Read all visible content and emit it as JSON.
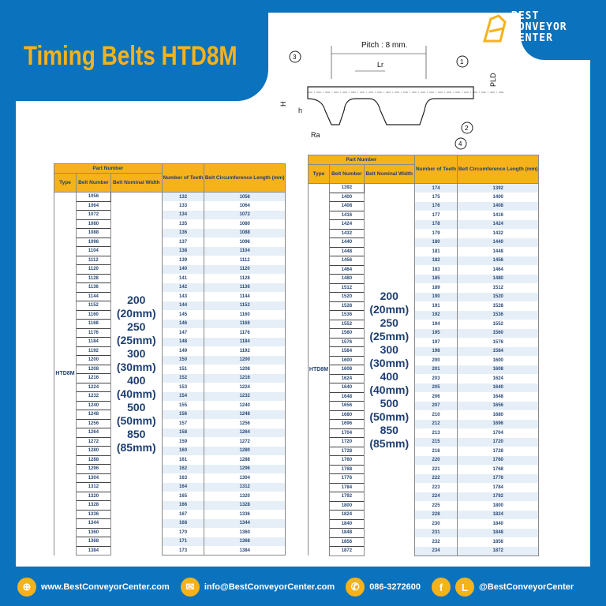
{
  "title": "Timing Belts HTD8M",
  "logo": {
    "line1": "BEST",
    "line2": "CONVEYOR",
    "line3": "CENTER"
  },
  "diagram": {
    "pitch": "Pitch : 8 mm.",
    "lr": "Lr",
    "pld": "PLD",
    "h_big": "H",
    "h_small": "h",
    "ra": "Ra",
    "c1": "1",
    "c2": "2",
    "c3": "3",
    "c4": "4"
  },
  "table_headers": {
    "part_number": "Part Number",
    "type": "Type",
    "belt_number": "Belt Number",
    "nominal_width": "Belt Nominal Width",
    "teeth": "Number of Teeth",
    "circumference": "Belt Circumference Length (mm)"
  },
  "type": "HTD8M",
  "widths": [
    "200",
    "(20mm)",
    "250",
    "(25mm)",
    "300",
    "(30mm)",
    "400",
    "(40mm)",
    "500",
    "(50mm)",
    "850",
    "(85mm)"
  ],
  "left_rows": [
    [
      "1056",
      "132",
      "1056"
    ],
    [
      "1064",
      "133",
      "1064"
    ],
    [
      "1072",
      "134",
      "1072"
    ],
    [
      "1080",
      "135",
      "1080"
    ],
    [
      "1088",
      "136",
      "1088"
    ],
    [
      "1096",
      "137",
      "1096"
    ],
    [
      "1104",
      "138",
      "1104"
    ],
    [
      "1112",
      "139",
      "1112"
    ],
    [
      "1120",
      "140",
      "1120"
    ],
    [
      "1128",
      "141",
      "1128"
    ],
    [
      "1136",
      "142",
      "1136"
    ],
    [
      "1144",
      "143",
      "1144"
    ],
    [
      "1152",
      "144",
      "1152"
    ],
    [
      "1160",
      "145",
      "1160"
    ],
    [
      "1168",
      "146",
      "1168"
    ],
    [
      "1176",
      "147",
      "1176"
    ],
    [
      "1184",
      "148",
      "1184"
    ],
    [
      "1192",
      "149",
      "1192"
    ],
    [
      "1200",
      "150",
      "1200"
    ],
    [
      "1208",
      "151",
      "1208"
    ],
    [
      "1216",
      "152",
      "1216"
    ],
    [
      "1224",
      "153",
      "1224"
    ],
    [
      "1232",
      "154",
      "1232"
    ],
    [
      "1240",
      "155",
      "1240"
    ],
    [
      "1248",
      "156",
      "1248"
    ],
    [
      "1256",
      "157",
      "1256"
    ],
    [
      "1264",
      "158",
      "1264"
    ],
    [
      "1272",
      "159",
      "1272"
    ],
    [
      "1280",
      "160",
      "1280"
    ],
    [
      "1288",
      "161",
      "1288"
    ],
    [
      "1296",
      "162",
      "1296"
    ],
    [
      "1304",
      "163",
      "1304"
    ],
    [
      "1312",
      "164",
      "1312"
    ],
    [
      "1320",
      "165",
      "1320"
    ],
    [
      "1328",
      "166",
      "1328"
    ],
    [
      "1336",
      "167",
      "1336"
    ],
    [
      "1344",
      "168",
      "1344"
    ],
    [
      "1360",
      "170",
      "1360"
    ],
    [
      "1368",
      "171",
      "1368"
    ],
    [
      "1384",
      "173",
      "1384"
    ]
  ],
  "right_rows": [
    [
      "1392",
      "174",
      "1392"
    ],
    [
      "1400",
      "175",
      "1400"
    ],
    [
      "1408",
      "176",
      "1408"
    ],
    [
      "1416",
      "177",
      "1416"
    ],
    [
      "1424",
      "178",
      "1424"
    ],
    [
      "1432",
      "179",
      "1432"
    ],
    [
      "1440",
      "180",
      "1440"
    ],
    [
      "1448",
      "181",
      "1448"
    ],
    [
      "1456",
      "182",
      "1456"
    ],
    [
      "1464",
      "183",
      "1464"
    ],
    [
      "1480",
      "185",
      "1480"
    ],
    [
      "1512",
      "189",
      "1512"
    ],
    [
      "1520",
      "190",
      "1520"
    ],
    [
      "1528",
      "191",
      "1528"
    ],
    [
      "1536",
      "192",
      "1536"
    ],
    [
      "1552",
      "194",
      "1552"
    ],
    [
      "1560",
      "195",
      "1560"
    ],
    [
      "1576",
      "197",
      "1576"
    ],
    [
      "1584",
      "198",
      "1584"
    ],
    [
      "1600",
      "200",
      "1600"
    ],
    [
      "1608",
      "201",
      "1608"
    ],
    [
      "1624",
      "203",
      "1624"
    ],
    [
      "1640",
      "205",
      "1640"
    ],
    [
      "1648",
      "206",
      "1648"
    ],
    [
      "1656",
      "207",
      "1656"
    ],
    [
      "1680",
      "210",
      "1680"
    ],
    [
      "1696",
      "212",
      "1696"
    ],
    [
      "1704",
      "213",
      "1704"
    ],
    [
      "1720",
      "215",
      "1720"
    ],
    [
      "1728",
      "216",
      "1728"
    ],
    [
      "1760",
      "220",
      "1760"
    ],
    [
      "1768",
      "221",
      "1768"
    ],
    [
      "1776",
      "222",
      "1776"
    ],
    [
      "1784",
      "223",
      "1784"
    ],
    [
      "1792",
      "224",
      "1792"
    ],
    [
      "1800",
      "225",
      "1800"
    ],
    [
      "1824",
      "228",
      "1824"
    ],
    [
      "1840",
      "230",
      "1840"
    ],
    [
      "1848",
      "231",
      "1848"
    ],
    [
      "1856",
      "232",
      "1856"
    ],
    [
      "1872",
      "234",
      "1872"
    ]
  ],
  "footer": {
    "website": "www.BestConveyorCenter.com",
    "email": "info@BestConveyorCenter.com",
    "phone": "086-3272600",
    "social": "@BestConveyorCenter",
    "icons": [
      "globe-icon",
      "mail-icon",
      "phone-icon",
      "facebook-icon",
      "line-icon"
    ]
  },
  "colors": {
    "brand_blue": "#0b72bd",
    "accent_yellow": "#f6b21b"
  }
}
